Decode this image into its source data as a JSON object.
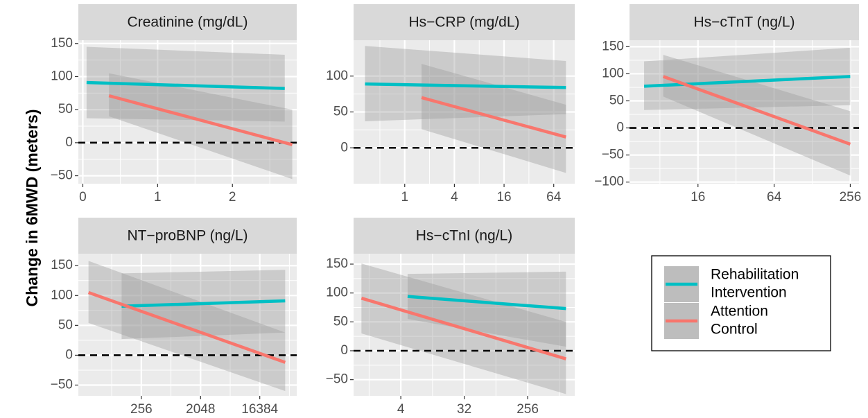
{
  "ylabel": "Change in 6MWD (meters)",
  "colors": {
    "rehabilitation": "#00BFC4",
    "attention": "#F8766D",
    "panel_bg": "#EBEBEB",
    "strip_bg": "#D9D9D9",
    "ribbon": "#999999"
  },
  "legend": {
    "entries": [
      {
        "label_lines": [
          "Rehabilitation",
          "Intervention"
        ],
        "color": "#00BFC4"
      },
      {
        "label_lines": [
          "Attention",
          "Control"
        ],
        "color": "#F8766D"
      }
    ]
  },
  "chart_data": [
    {
      "type": "line",
      "title": "Creatinine (mg/dL)",
      "x_scale": "linear",
      "xlim": [
        -0.06,
        2.86
      ],
      "ylim": [
        -62,
        155
      ],
      "x_ticks": [
        0,
        1,
        2
      ],
      "x_tick_labels": [
        "0",
        "1",
        "2"
      ],
      "y_ticks": [
        -50,
        0,
        50,
        100,
        150
      ],
      "y_tick_labels": [
        "−50",
        "0",
        "50",
        "100",
        "150"
      ],
      "reference_line_y": 0,
      "series": [
        {
          "name": "Rehabilitation Intervention",
          "x": [
            0.05,
            2.7
          ],
          "y": [
            91,
            82
          ],
          "ci_lower": [
            37,
            32
          ],
          "ci_upper": [
            145,
            133
          ]
        },
        {
          "name": "Attention Control",
          "x": [
            0.35,
            2.8
          ],
          "y": [
            71,
            -3
          ],
          "ci_lower": [
            40,
            -55
          ],
          "ci_upper": [
            105,
            50
          ]
        }
      ]
    },
    {
      "type": "line",
      "title": "Hs−CRP (mg/dL)",
      "x_scale": "log2",
      "xlim": [
        0.24,
        115
      ],
      "ylim": [
        -50,
        150
      ],
      "x_ticks": [
        1,
        4,
        16,
        64
      ],
      "x_tick_labels": [
        "1",
        "4",
        "16",
        "64"
      ],
      "y_ticks": [
        0,
        50,
        100
      ],
      "y_tick_labels": [
        "0",
        "50",
        "100"
      ],
      "reference_line_y": 0,
      "series": [
        {
          "name": "Rehabilitation Intervention",
          "x": [
            0.33,
            90
          ],
          "y": [
            89,
            84
          ],
          "ci_lower": [
            37,
            47
          ],
          "ci_upper": [
            142,
            121
          ]
        },
        {
          "name": "Attention Control",
          "x": [
            1.6,
            90
          ],
          "y": [
            70,
            15
          ],
          "ci_lower": [
            26,
            -35
          ],
          "ci_upper": [
            117,
            60
          ]
        }
      ]
    },
    {
      "type": "line",
      "title": "Hs−cTnT (ng/L)",
      "x_scale": "log2",
      "xlim": [
        4.6,
        300
      ],
      "ylim": [
        -103,
        162
      ],
      "x_ticks": [
        16,
        64,
        256
      ],
      "x_tick_labels": [
        "16",
        "64",
        "256"
      ],
      "y_ticks": [
        -100,
        -50,
        0,
        50,
        100,
        150
      ],
      "y_tick_labels": [
        "−100",
        "−50",
        "0",
        "50",
        "100",
        "150"
      ],
      "reference_line_y": 0,
      "series": [
        {
          "name": "Rehabilitation Intervention",
          "x": [
            6,
            256
          ],
          "y": [
            77,
            95
          ],
          "ci_lower": [
            33,
            42
          ],
          "ci_upper": [
            123,
            148
          ]
        },
        {
          "name": "Attention Control",
          "x": [
            8.5,
            256
          ],
          "y": [
            95,
            -30
          ],
          "ci_lower": [
            58,
            -88
          ],
          "ci_upper": [
            135,
            31
          ]
        }
      ]
    },
    {
      "type": "line",
      "title": "NT−proBNP (ng/L)",
      "x_scale": "log2",
      "xlim": [
        28,
        60000
      ],
      "ylim": [
        -68,
        170
      ],
      "x_ticks": [
        256,
        2048,
        16384
      ],
      "x_tick_labels": [
        "256",
        "2048",
        "16384"
      ],
      "y_ticks": [
        -50,
        0,
        50,
        100,
        150
      ],
      "y_tick_labels": [
        "−50",
        "0",
        "50",
        "100",
        "150"
      ],
      "reference_line_y": 0,
      "series": [
        {
          "name": "Rehabilitation Intervention",
          "x": [
            128,
            40000
          ],
          "y": [
            82,
            91
          ],
          "ci_lower": [
            27,
            38
          ],
          "ci_upper": [
            137,
            143
          ]
        },
        {
          "name": "Attention Control",
          "x": [
            40,
            40000
          ],
          "y": [
            105,
            -12
          ],
          "ci_lower": [
            54,
            -60
          ],
          "ci_upper": [
            158,
            38
          ]
        }
      ]
    },
    {
      "type": "line",
      "title": "Hs−cTnI (ng/L)",
      "x_scale": "log2",
      "xlim": [
        0.85,
        1200
      ],
      "ylim": [
        -78,
        168
      ],
      "x_ticks": [
        4,
        32,
        256
      ],
      "x_tick_labels": [
        "4",
        "32",
        "256"
      ],
      "y_ticks": [
        -50,
        0,
        50,
        100,
        150
      ],
      "y_tick_labels": [
        "−50",
        "0",
        "50",
        "100",
        "150"
      ],
      "reference_line_y": 0,
      "series": [
        {
          "name": "Rehabilitation Intervention",
          "x": [
            5,
            900
          ],
          "y": [
            94,
            73
          ],
          "ci_lower": [
            55,
            7
          ],
          "ci_upper": [
            133,
            137
          ]
        },
        {
          "name": "Attention Control",
          "x": [
            1.1,
            900
          ],
          "y": [
            91,
            -14
          ],
          "ci_lower": [
            30,
            -75
          ],
          "ci_upper": [
            151,
            50
          ]
        }
      ]
    }
  ]
}
